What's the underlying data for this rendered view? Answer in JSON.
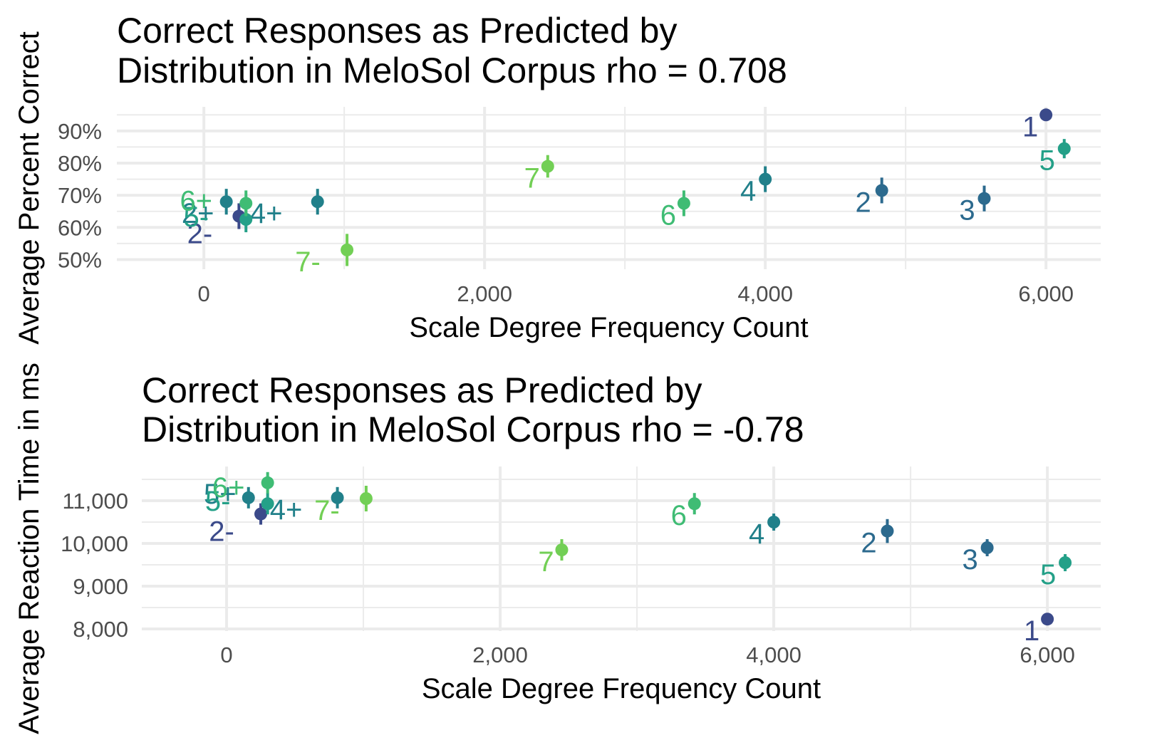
{
  "chart_data": [
    {
      "type": "scatter",
      "title_lines": [
        "Correct Responses as Predicted by",
        "Distribution in MeloSol Corpus rho = 0.708"
      ],
      "xlabel": "Scale Degree Frequency Count",
      "ylabel": "Average Percent Correct",
      "xlim": [
        -620,
        6390
      ],
      "ylim": [
        47,
        97.5
      ],
      "x_ticks": [
        {
          "value": 0,
          "label": "0"
        },
        {
          "value": 2000,
          "label": "2,000"
        },
        {
          "value": 4000,
          "label": "4,000"
        },
        {
          "value": 6000,
          "label": "6,000"
        }
      ],
      "y_ticks": [
        {
          "value": 50,
          "label": "50%"
        },
        {
          "value": 60,
          "label": "60%"
        },
        {
          "value": 70,
          "label": "70%"
        },
        {
          "value": 80,
          "label": "80%"
        },
        {
          "value": 90,
          "label": "90%"
        }
      ],
      "grid": true,
      "points": [
        {
          "label": "1",
          "x": 6000,
          "y": 95.0,
          "err": 0,
          "color": "#3b4a8a"
        },
        {
          "label": "2",
          "x": 4830,
          "y": 71.5,
          "err": 4.0,
          "color": "#2c6a8e"
        },
        {
          "label": "3",
          "x": 5560,
          "y": 69.0,
          "err": 4.0,
          "color": "#2c6a8e"
        },
        {
          "label": "4",
          "x": 4000,
          "y": 75.0,
          "err": 4.0,
          "color": "#21808a"
        },
        {
          "label": "5",
          "x": 6130,
          "y": 84.5,
          "err": 3.0,
          "color": "#24a088"
        },
        {
          "label": "6",
          "x": 3420,
          "y": 67.5,
          "err": 4.0,
          "color": "#3fbc74"
        },
        {
          "label": "7",
          "x": 2450,
          "y": 79.0,
          "err": 3.5,
          "color": "#72cf55"
        },
        {
          "label": "2-",
          "x": 250,
          "y": 63.5,
          "err": 4.0,
          "color": "#3b4a8a"
        },
        {
          "label": "2+",
          "x": 160,
          "y": 68.0,
          "err": 4.0,
          "color": "#21808a"
        },
        {
          "label": "4+",
          "x": 810,
          "y": 68.0,
          "err": 4.0,
          "color": "#21808a"
        },
        {
          "label": "5-",
          "x": 300,
          "y": 62.5,
          "err": 4.0,
          "color": "#24a088"
        },
        {
          "label": "6+",
          "x": 300,
          "y": 67.5,
          "err": 4.0,
          "color": "#3fbc74"
        },
        {
          "label": "7-",
          "x": 1020,
          "y": 53.0,
          "err": 5.0,
          "color": "#72cf55"
        }
      ]
    },
    {
      "type": "scatter",
      "title_lines": [
        "Correct Responses as Predicted by",
        "Distribution in MeloSol Corpus rho = -0.78"
      ],
      "xlabel": "Scale Degree Frequency Count",
      "ylabel": "Average Reaction Time in ms",
      "xlim": [
        -620,
        6390
      ],
      "ylim": [
        7950,
        11800
      ],
      "x_ticks": [
        {
          "value": 0,
          "label": "0"
        },
        {
          "value": 2000,
          "label": "2,000"
        },
        {
          "value": 4000,
          "label": "4,000"
        },
        {
          "value": 6000,
          "label": "6,000"
        }
      ],
      "y_ticks": [
        {
          "value": 8000,
          "label": "8,000"
        },
        {
          "value": 9000,
          "label": "9,000"
        },
        {
          "value": 10000,
          "label": "10,000"
        },
        {
          "value": 11000,
          "label": "11,000"
        }
      ],
      "grid": true,
      "points": [
        {
          "label": "1",
          "x": 6000,
          "y": 8230,
          "err": 0,
          "color": "#3b4a8a"
        },
        {
          "label": "2",
          "x": 4830,
          "y": 10290,
          "err": 280,
          "color": "#2c6a8e"
        },
        {
          "label": "3",
          "x": 5560,
          "y": 9900,
          "err": 200,
          "color": "#2c6a8e"
        },
        {
          "label": "4",
          "x": 4000,
          "y": 10500,
          "err": 200,
          "color": "#21808a"
        },
        {
          "label": "5",
          "x": 6130,
          "y": 9550,
          "err": 200,
          "color": "#24a088"
        },
        {
          "label": "6",
          "x": 3420,
          "y": 10930,
          "err": 250,
          "color": "#3fbc74"
        },
        {
          "label": "7",
          "x": 2450,
          "y": 9850,
          "err": 250,
          "color": "#72cf55"
        },
        {
          "label": "2-",
          "x": 250,
          "y": 10690,
          "err": 250,
          "color": "#3b4a8a"
        },
        {
          "label": "5+",
          "x": 160,
          "y": 11070,
          "err": 250,
          "color": "#21808a"
        },
        {
          "label": "4+",
          "x": 810,
          "y": 11070,
          "err": 250,
          "color": "#21808a"
        },
        {
          "label": "5-",
          "x": 300,
          "y": 10930,
          "err": 250,
          "color": "#24a088"
        },
        {
          "label": "6+",
          "x": 300,
          "y": 11420,
          "err": 250,
          "color": "#3fbc74"
        },
        {
          "label": "7-",
          "x": 1020,
          "y": 11050,
          "err": 300,
          "color": "#72cf55"
        }
      ]
    }
  ]
}
